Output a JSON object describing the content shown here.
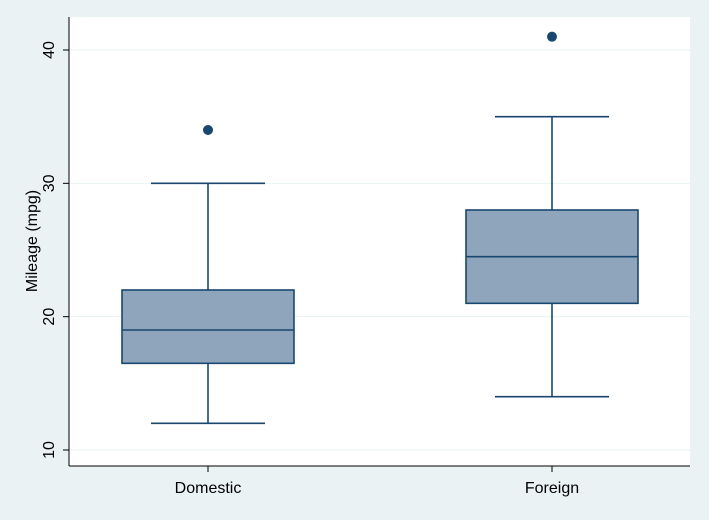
{
  "chart_data": {
    "type": "box",
    "title": "",
    "xlabel": "",
    "ylabel": "Mileage (mpg)",
    "ylim": [
      9.4,
      42.4
    ],
    "yticks": [
      10,
      20,
      30,
      40
    ],
    "grid": true,
    "categories": [
      "Domestic",
      "Foreign"
    ],
    "boxes": [
      {
        "category": "Domestic",
        "whisker_low": 12,
        "q1": 16.5,
        "median": 19,
        "q3": 22,
        "whisker_high": 30,
        "outliers": [
          34
        ]
      },
      {
        "category": "Foreign",
        "whisker_low": 14,
        "q1": 21,
        "median": 24.5,
        "q3": 28,
        "whisker_high": 35,
        "outliers": [
          41
        ]
      }
    ],
    "colors": {
      "box_fill": "#8ea5bb",
      "stroke": "#1a476f",
      "outlier": "#1a476f",
      "plot_bg": "#ffffff",
      "outer_bg": "#eaf2f3",
      "grid": "#eaf2f3",
      "axis": "#000000"
    }
  }
}
